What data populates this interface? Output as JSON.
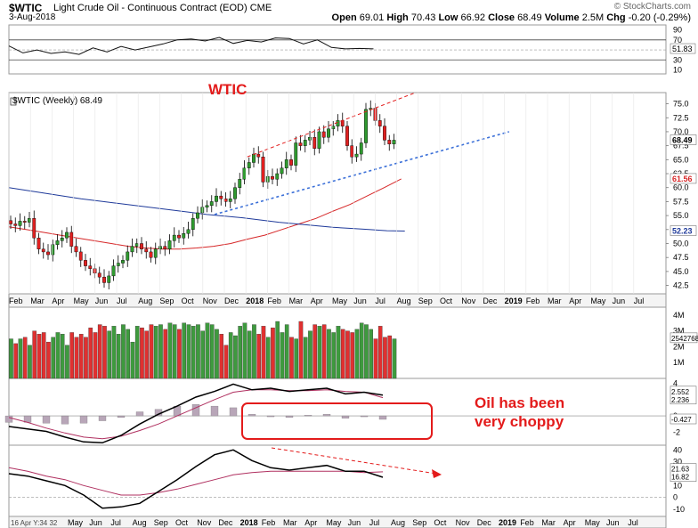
{
  "header": {
    "symbol": "$WTIC",
    "name": "Light Crude Oil - Continuous Contract (EOD)",
    "exchange": "CME",
    "date": "3-Aug-2018",
    "watermark": "© StockCharts.com",
    "open_label": "Open",
    "open": "69.01",
    "high_label": "High",
    "high": "70.43",
    "low_label": "Low",
    "low": "66.92",
    "close_label": "Close",
    "close": "68.49",
    "volume_label": "Volume",
    "volume": "2.5M",
    "chg_label": "Chg",
    "chg": "-0.20 (-0.29%)"
  },
  "annotations": {
    "title_text": "WTIC",
    "note_line1": "Oil has been",
    "note_line2": "very choppy",
    "color": "#e31b1b"
  },
  "footer": {
    "stamp": "16 Apr Y:34 32"
  },
  "chart_data": [
    {
      "panel": "rsi",
      "type": "line",
      "right_ticks": [
        "90",
        "70",
        "50",
        "30",
        "10"
      ],
      "last_value": "51.83",
      "x_weeks": [
        0,
        3,
        6,
        9,
        12,
        15,
        18,
        21,
        24,
        27,
        30,
        33,
        36,
        39,
        42,
        45,
        48,
        51,
        54,
        57,
        60,
        63,
        66,
        69,
        72,
        75,
        78
      ],
      "values": [
        58,
        44,
        50,
        43,
        46,
        41,
        54,
        46,
        57,
        50,
        56,
        62,
        70,
        72,
        68,
        75,
        63,
        69,
        66,
        74,
        73,
        62,
        70,
        55,
        52,
        53,
        52
      ]
    },
    {
      "panel": "price",
      "type": "candlestick",
      "legend": "$WTIC (Weekly) 68.49",
      "right_ticks": [
        "75.0",
        "72.5",
        "70.0",
        "67.5",
        "65.0",
        "62.5",
        "60.0",
        "57.5",
        "55.0",
        "52.5",
        "50.0",
        "47.5",
        "45.0",
        "42.5"
      ],
      "ylim": [
        41,
        77
      ],
      "last_price": "68.49",
      "sma_fast_label": "61.56",
      "sma_slow_label": "52.23",
      "x_labels": [
        "Feb",
        "Mar",
        "Apr",
        "May",
        "Jun",
        "Jul",
        "Aug",
        "Sep",
        "Oct",
        "Nov",
        "Dec",
        "2018",
        "Feb",
        "Mar",
        "Apr",
        "May",
        "Jun",
        "Jul",
        "Aug",
        "Sep",
        "Oct",
        "Nov",
        "Dec",
        "2019",
        "Feb",
        "Mar",
        "Apr",
        "May",
        "Jun",
        "Jul"
      ],
      "closes": [
        53.5,
        53.2,
        54.0,
        53.8,
        54.5,
        51.0,
        49.0,
        48.5,
        48.0,
        49.8,
        50.5,
        51.0,
        52.0,
        49.5,
        48.5,
        47.0,
        46.0,
        45.5,
        44.7,
        44.0,
        43.0,
        44.2,
        46.0,
        46.5,
        47.0,
        48.5,
        49.5,
        50.0,
        49.0,
        48.5,
        47.5,
        49.0,
        49.5,
        49.0,
        50.5,
        51.5,
        51.0,
        51.8,
        52.5,
        54.5,
        55.5,
        56.5,
        56.8,
        57.5,
        58.5,
        58.0,
        57.5,
        58.0,
        60.0,
        61.5,
        63.5,
        64.5,
        66.0,
        65.5,
        61.0,
        62.0,
        61.5,
        62.5,
        63.5,
        65.0,
        64.0,
        68.0,
        67.5,
        68.5,
        69.0,
        67.0,
        70.0,
        69.0,
        70.5,
        71.0,
        72.0,
        71.0,
        67.5,
        65.5,
        66.0,
        68.0,
        74.0,
        74.2,
        72.0,
        71.0,
        68.5,
        67.8,
        68.49
      ],
      "sma_fast": [
        53,
        52.5,
        52,
        51.5,
        51,
        50.5,
        50,
        49.5,
        49.2,
        49,
        49,
        49.2,
        49.5,
        50,
        50.8,
        51.5,
        52.5,
        53.5,
        54.5,
        55.8,
        57,
        58.5,
        60,
        61.56
      ],
      "sma_slow": [
        60,
        59.5,
        59,
        58.5,
        58,
        57.6,
        57.2,
        56.8,
        56.4,
        56,
        55.6,
        55.2,
        54.9,
        54.6,
        54.2,
        53.8,
        53.5,
        53.2,
        52.9,
        52.7,
        52.5,
        52.3,
        52.23
      ]
    },
    {
      "panel": "volume",
      "type": "bar",
      "right_ticks": [
        "4M",
        "3M",
        "2M",
        "1M"
      ],
      "last_value_label": "2542768",
      "values": [
        2.5,
        2.2,
        2.5,
        2.6,
        2.1,
        3.0,
        2.8,
        2.9,
        2.3,
        2.6,
        2.9,
        2.8,
        2.1,
        2.9,
        2.6,
        2.8,
        2.6,
        3.2,
        2.9,
        3.4,
        3.3,
        3.0,
        3.3,
        2.8,
        3.4,
        3.1,
        2.3,
        3.3,
        3.2,
        3.0,
        3.4,
        3.3,
        3.4,
        3.1,
        3.5,
        3.4,
        3.1,
        3.5,
        3.4,
        3.3,
        3.4,
        3.0,
        3.5,
        3.4,
        3.1,
        2.8,
        2.1,
        2.9,
        2.7,
        3.3,
        3.5,
        3.0,
        3.4,
        2.8,
        3.3,
        2.6,
        3.2,
        3.6,
        2.9,
        3.4,
        2.6,
        2.5,
        3.6,
        2.6,
        3.0,
        3.4,
        3.3,
        3.4,
        3.1,
        2.9,
        3.3,
        3.1,
        3.0,
        2.9,
        3.1,
        3.5,
        3.4,
        3.1,
        2.5,
        3.3,
        2.6,
        2.7,
        2.5
      ]
    },
    {
      "panel": "macd",
      "type": "line",
      "right_ticks": [
        "4",
        "2",
        "0",
        "-2"
      ],
      "macd_value": "2.552",
      "signal_value": "2.236",
      "hist_value": "-0.427",
      "macd": [
        -1.3,
        -1.6,
        -1.9,
        -2.6,
        -3.2,
        -3.3,
        -2.4,
        -1.0,
        0.2,
        1.2,
        2.3,
        3.0,
        3.9,
        3.2,
        3.4,
        3.0,
        3.2,
        3.4,
        2.7,
        2.9,
        2.55
      ],
      "signal": [
        -0.2,
        -0.8,
        -1.5,
        -2.1,
        -2.6,
        -2.8,
        -2.5,
        -1.8,
        -1.0,
        0.0,
        1.0,
        2.0,
        2.9,
        3.2,
        3.2,
        3.1,
        3.1,
        3.2,
        3.0,
        2.9,
        2.24
      ],
      "histogram": [
        -0.8,
        -0.8,
        -0.9,
        -1.0,
        -0.9,
        -0.6,
        -0.2,
        0.5,
        0.8,
        1.2,
        1.4,
        1.2,
        1.0,
        0.2,
        0.0,
        -0.2,
        0.1,
        0.2,
        -0.3,
        0.0,
        -0.43
      ]
    },
    {
      "panel": "adx",
      "type": "line",
      "right_ticks": [
        "40",
        "30",
        "20",
        "10",
        "0",
        "-10"
      ],
      "value1": "21.63",
      "value2": "16.82",
      "series_a": [
        20,
        18,
        14,
        10,
        2,
        -9,
        -8,
        -5,
        5,
        15,
        26,
        36,
        40,
        31,
        25,
        23,
        25,
        27,
        22,
        22,
        17
      ],
      "series_b": [
        25,
        22,
        18,
        15,
        10,
        6,
        2,
        2,
        4,
        7,
        11,
        15,
        19,
        21,
        22,
        22,
        22,
        22,
        22,
        21,
        21.6
      ]
    },
    {
      "panel": "date_axis",
      "type": "table",
      "labels": [
        "May",
        "Jun",
        "Jul",
        "Aug",
        "Sep",
        "Oct",
        "Nov",
        "Dec",
        "2018",
        "Feb",
        "Mar",
        "Apr",
        "May",
        "Jun",
        "Jul",
        "Aug",
        "Sep",
        "Oct",
        "Nov",
        "Dec",
        "2019",
        "Feb",
        "Mar",
        "Apr",
        "May",
        "Jun",
        "Jul"
      ]
    }
  ]
}
